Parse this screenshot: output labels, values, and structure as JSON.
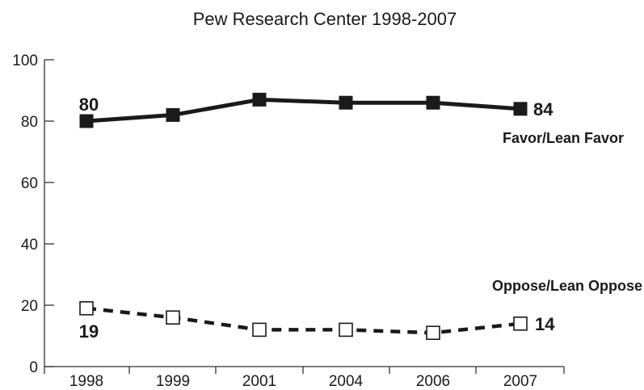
{
  "chart_data": {
    "type": "line",
    "title": "Pew Research Center 1998-2007",
    "xlabel": "",
    "ylabel": "",
    "categories": [
      "1998",
      "1999",
      "2001",
      "2004",
      "2006",
      "2007"
    ],
    "ylim": [
      0,
      100
    ],
    "yticks": [
      "0",
      "20",
      "40",
      "60",
      "80",
      "100"
    ],
    "grid": false,
    "series": [
      {
        "name": "Favor/Lean Favor",
        "values": [
          80,
          82,
          87,
          86,
          86,
          84
        ],
        "style": "solid",
        "marker": "filled-square",
        "color": "#1a1a1a",
        "data_labels": [
          {
            "index": 0,
            "text": "80"
          },
          {
            "index": 5,
            "text": "84"
          }
        ]
      },
      {
        "name": "Oppose/Lean Oppose",
        "values": [
          19,
          16,
          12,
          12,
          11,
          14
        ],
        "style": "dashed",
        "marker": "open-square",
        "color": "#1a1a1a",
        "data_labels": [
          {
            "index": 0,
            "text": "19"
          },
          {
            "index": 5,
            "text": "14"
          }
        ]
      }
    ]
  }
}
